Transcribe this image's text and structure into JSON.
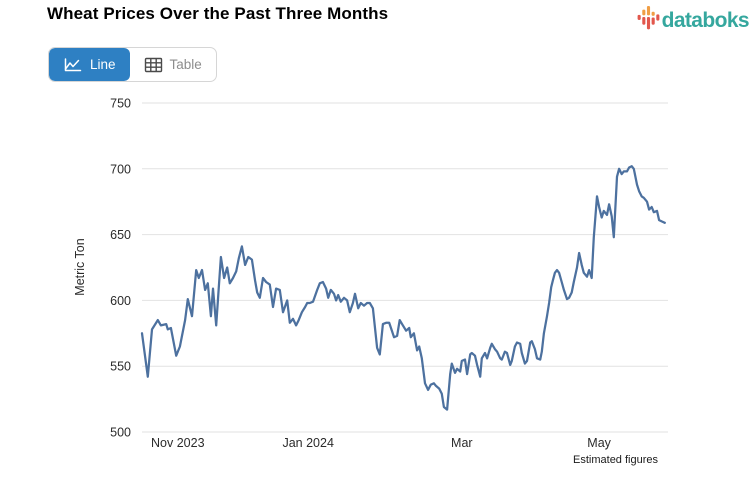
{
  "header": {
    "title": "Wheat Prices Over the Past Three Months",
    "brand": {
      "name": "databoks",
      "color": "#35a79e",
      "icon": "equalizer-bars-icon",
      "icon_colors": {
        "orange": "#f09e45",
        "red": "#e2574c"
      }
    }
  },
  "toolbar": {
    "line_label": "Line",
    "table_label": "Table",
    "active": "Line",
    "active_color": "#2e80c3",
    "icons": [
      "line-chart-icon",
      "table-icon"
    ]
  },
  "chart_data": {
    "type": "line",
    "title": "Wheat Prices Over the Past Three Months",
    "ylabel": "Metric Ton",
    "ylim": [
      500,
      750
    ],
    "yticks": [
      500,
      550,
      600,
      650,
      700,
      750
    ],
    "grid": true,
    "legend": false,
    "line_color": "#4d719f",
    "grid_color": "#e2e2e2",
    "tick_color": "#2b2b2b",
    "footnote": "Estimated figures",
    "xticks": [
      {
        "t": 0.068,
        "label": "Nov 2023"
      },
      {
        "t": 0.316,
        "label": "Jan 2024"
      },
      {
        "t": 0.608,
        "label": "Mar"
      },
      {
        "t": 0.869,
        "label": "May"
      }
    ],
    "series": [
      {
        "name": "Wheat price (Metric Ton)",
        "points": [
          [
            0.0,
            575
          ],
          [
            0.011,
            542
          ],
          [
            0.019,
            578
          ],
          [
            0.03,
            585
          ],
          [
            0.036,
            581
          ],
          [
            0.046,
            582
          ],
          [
            0.049,
            578
          ],
          [
            0.055,
            579
          ],
          [
            0.065,
            558
          ],
          [
            0.072,
            565
          ],
          [
            0.082,
            585
          ],
          [
            0.087,
            601
          ],
          [
            0.095,
            588
          ],
          [
            0.103,
            623
          ],
          [
            0.108,
            617
          ],
          [
            0.114,
            623
          ],
          [
            0.12,
            608
          ],
          [
            0.125,
            613
          ],
          [
            0.131,
            588
          ],
          [
            0.135,
            609
          ],
          [
            0.141,
            581
          ],
          [
            0.146,
            610
          ],
          [
            0.15,
            633
          ],
          [
            0.156,
            617
          ],
          [
            0.162,
            625
          ],
          [
            0.167,
            613
          ],
          [
            0.173,
            617
          ],
          [
            0.179,
            622
          ],
          [
            0.184,
            632
          ],
          [
            0.19,
            641
          ],
          [
            0.196,
            627
          ],
          [
            0.202,
            633
          ],
          [
            0.209,
            631
          ],
          [
            0.215,
            615
          ],
          [
            0.219,
            606
          ],
          [
            0.224,
            602
          ],
          [
            0.23,
            617
          ],
          [
            0.236,
            614
          ],
          [
            0.243,
            612
          ],
          [
            0.249,
            595
          ],
          [
            0.255,
            609
          ],
          [
            0.262,
            608
          ],
          [
            0.268,
            591
          ],
          [
            0.276,
            600
          ],
          [
            0.281,
            583
          ],
          [
            0.287,
            586
          ],
          [
            0.293,
            581
          ],
          [
            0.298,
            585
          ],
          [
            0.304,
            591
          ],
          [
            0.31,
            595
          ],
          [
            0.314,
            598
          ],
          [
            0.319,
            598
          ],
          [
            0.325,
            599
          ],
          [
            0.333,
            608
          ],
          [
            0.338,
            613
          ],
          [
            0.344,
            614
          ],
          [
            0.35,
            609
          ],
          [
            0.354,
            602
          ],
          [
            0.359,
            608
          ],
          [
            0.365,
            605
          ],
          [
            0.369,
            600
          ],
          [
            0.373,
            604
          ],
          [
            0.378,
            599
          ],
          [
            0.384,
            602
          ],
          [
            0.39,
            600
          ],
          [
            0.395,
            591
          ],
          [
            0.401,
            598
          ],
          [
            0.405,
            605
          ],
          [
            0.411,
            594
          ],
          [
            0.416,
            598
          ],
          [
            0.422,
            596
          ],
          [
            0.428,
            598
          ],
          [
            0.433,
            598
          ],
          [
            0.439,
            594
          ],
          [
            0.447,
            564
          ],
          [
            0.452,
            559
          ],
          [
            0.458,
            582
          ],
          [
            0.464,
            583
          ],
          [
            0.47,
            583
          ],
          [
            0.475,
            577
          ],
          [
            0.479,
            572
          ],
          [
            0.485,
            573
          ],
          [
            0.49,
            585
          ],
          [
            0.496,
            581
          ],
          [
            0.502,
            577
          ],
          [
            0.508,
            579
          ],
          [
            0.511,
            572
          ],
          [
            0.517,
            575
          ],
          [
            0.523,
            562
          ],
          [
            0.527,
            565
          ],
          [
            0.532,
            556
          ],
          [
            0.538,
            537
          ],
          [
            0.544,
            532
          ],
          [
            0.549,
            536
          ],
          [
            0.555,
            537
          ],
          [
            0.559,
            535
          ],
          [
            0.565,
            533
          ],
          [
            0.57,
            529
          ],
          [
            0.574,
            519
          ],
          [
            0.58,
            517
          ],
          [
            0.586,
            544
          ],
          [
            0.589,
            552
          ],
          [
            0.595,
            545
          ],
          [
            0.599,
            548
          ],
          [
            0.605,
            546
          ],
          [
            0.608,
            554
          ],
          [
            0.614,
            555
          ],
          [
            0.618,
            544
          ],
          [
            0.624,
            559
          ],
          [
            0.627,
            560
          ],
          [
            0.633,
            558
          ],
          [
            0.637,
            551
          ],
          [
            0.643,
            542
          ],
          [
            0.646,
            556
          ],
          [
            0.652,
            560
          ],
          [
            0.656,
            556
          ],
          [
            0.662,
            564
          ],
          [
            0.665,
            567
          ],
          [
            0.671,
            563
          ],
          [
            0.675,
            561
          ],
          [
            0.681,
            556
          ],
          [
            0.684,
            555
          ],
          [
            0.69,
            561
          ],
          [
            0.694,
            560
          ],
          [
            0.7,
            551
          ],
          [
            0.703,
            554
          ],
          [
            0.709,
            565
          ],
          [
            0.713,
            568
          ],
          [
            0.719,
            567
          ],
          [
            0.722,
            560
          ],
          [
            0.728,
            552
          ],
          [
            0.732,
            554
          ],
          [
            0.738,
            568
          ],
          [
            0.741,
            569
          ],
          [
            0.747,
            563
          ],
          [
            0.751,
            556
          ],
          [
            0.757,
            555
          ],
          [
            0.76,
            561
          ],
          [
            0.764,
            575
          ],
          [
            0.77,
            588
          ],
          [
            0.774,
            598
          ],
          [
            0.778,
            610
          ],
          [
            0.781,
            615
          ],
          [
            0.785,
            621
          ],
          [
            0.789,
            623
          ],
          [
            0.793,
            621
          ],
          [
            0.798,
            614
          ],
          [
            0.802,
            608
          ],
          [
            0.808,
            601
          ],
          [
            0.812,
            602
          ],
          [
            0.817,
            606
          ],
          [
            0.821,
            614
          ],
          [
            0.827,
            625
          ],
          [
            0.831,
            636
          ],
          [
            0.836,
            627
          ],
          [
            0.84,
            621
          ],
          [
            0.846,
            618
          ],
          [
            0.85,
            623
          ],
          [
            0.855,
            617
          ],
          [
            0.859,
            648
          ],
          [
            0.865,
            679
          ],
          [
            0.869,
            671
          ],
          [
            0.874,
            663
          ],
          [
            0.878,
            668
          ],
          [
            0.884,
            665
          ],
          [
            0.888,
            673
          ],
          [
            0.893,
            664
          ],
          [
            0.897,
            648
          ],
          [
            0.903,
            694
          ],
          [
            0.907,
            700
          ],
          [
            0.912,
            696
          ],
          [
            0.916,
            698
          ],
          [
            0.922,
            698
          ],
          [
            0.926,
            701
          ],
          [
            0.931,
            702
          ],
          [
            0.935,
            700
          ],
          [
            0.941,
            688
          ],
          [
            0.945,
            683
          ],
          [
            0.95,
            679
          ],
          [
            0.954,
            678
          ],
          [
            0.96,
            675
          ],
          [
            0.964,
            669
          ],
          [
            0.969,
            671
          ],
          [
            0.973,
            667
          ],
          [
            0.979,
            668
          ],
          [
            0.983,
            661
          ],
          [
            0.988,
            660
          ],
          [
            0.994,
            659
          ]
        ]
      }
    ]
  }
}
